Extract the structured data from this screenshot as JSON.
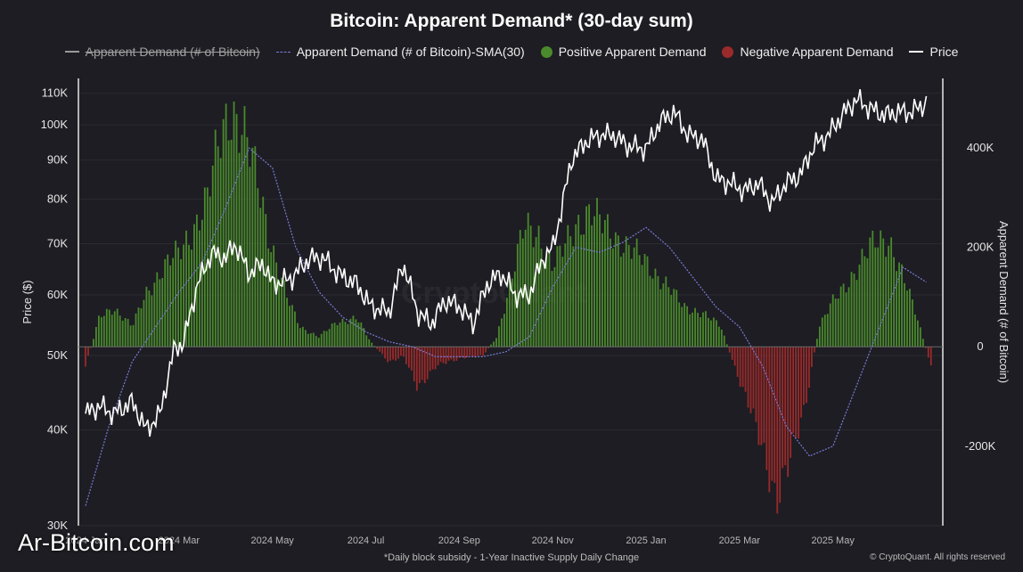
{
  "title": "Bitcoin: Apparent Demand* (30-day sum)",
  "legend": [
    {
      "label": "Apparent Demand (# of Bitcoin)",
      "style": "line",
      "color": "#9a9a9a",
      "hidden": true
    },
    {
      "label": "Apparent Demand (# of Bitcoin)-SMA(30)",
      "style": "dashed",
      "color": "#7a7ad8"
    },
    {
      "label": "Positive Apparent Demand",
      "style": "dot",
      "color": "#4a8a2c"
    },
    {
      "label": "Negative Apparent Demand",
      "style": "dot",
      "color": "#9b2a2a"
    },
    {
      "label": "Price",
      "style": "line",
      "color": "#ffffff"
    }
  ],
  "footnote": "*Daily block subsidy - 1-Year Inactive Supply Daily Change",
  "copyright": "© CryptoQuant. All rights reserved",
  "watermark": "Ar-Bitcoin.com",
  "watermark_center": "CryptoQuant",
  "chart_data": {
    "type": "bar",
    "left_axis": {
      "label": "Price ($)",
      "scale": "log",
      "range": [
        30000,
        115000
      ],
      "ticks": [
        "30K",
        "40K",
        "50K",
        "60K",
        "70K",
        "80K",
        "90K",
        "100K",
        "110K"
      ],
      "tick_values": [
        30000,
        40000,
        50000,
        60000,
        70000,
        80000,
        90000,
        100000,
        110000
      ]
    },
    "right_axis": {
      "label": "Apparent Demand (# of Bitcoin)",
      "range": [
        -360000,
        540000
      ],
      "ticks": [
        "-200K",
        "0",
        "200K",
        "400K"
      ],
      "tick_values": [
        -200000,
        0,
        200000,
        400000
      ]
    },
    "x_axis": {
      "ticks": [
        "2024 Jan",
        "2024 Mar",
        "2024 May",
        "2024 Jul",
        "2024 Sep",
        "2024 Nov",
        "2025 Jan",
        "2025 Mar",
        "2025 May"
      ],
      "tick_months": [
        0,
        2,
        4,
        6,
        8,
        10,
        12,
        14,
        16
      ],
      "range_months": [
        0,
        18.2
      ]
    },
    "colors": {
      "positive": "#4a8a2c",
      "negative": "#9b2a2a",
      "sma": "#7a7ad8",
      "price": "#ffffff"
    },
    "demand_series": {
      "name": "Apparent Demand (# of Bitcoin)",
      "x_months": [
        0,
        0.3,
        0.6,
        1.0,
        1.3,
        1.6,
        2.0,
        2.3,
        2.6,
        2.9,
        3.1,
        3.4,
        3.7,
        4.0,
        4.3,
        4.6,
        5.0,
        5.4,
        5.8,
        6.1,
        6.5,
        6.8,
        7.1,
        7.5,
        7.8,
        8.1,
        8.5,
        8.8,
        9.1,
        9.4,
        9.7,
        10.0,
        10.2,
        10.5,
        10.8,
        11.0,
        11.3,
        11.6,
        12.0,
        12.4,
        12.8,
        13.2,
        13.6,
        13.9,
        14.2,
        14.5,
        14.8,
        15.1,
        15.4,
        15.7,
        16.0,
        16.3,
        16.6,
        16.9,
        17.2,
        17.5,
        17.8,
        18.1
      ],
      "values": [
        -40000,
        60000,
        80000,
        40000,
        110000,
        150000,
        190000,
        240000,
        290000,
        430000,
        490000,
        420000,
        330000,
        200000,
        100000,
        40000,
        20000,
        50000,
        60000,
        10000,
        -30000,
        -20000,
        -80000,
        -40000,
        -30000,
        -20000,
        -20000,
        20000,
        130000,
        240000,
        230000,
        160000,
        190000,
        250000,
        270000,
        250000,
        230000,
        200000,
        170000,
        130000,
        80000,
        70000,
        40000,
        -40000,
        -120000,
        -210000,
        -300000,
        -230000,
        -120000,
        40000,
        90000,
        130000,
        170000,
        210000,
        220000,
        140000,
        60000,
        -40000
      ]
    },
    "sma_series": {
      "name": "Apparent Demand (# of Bitcoin)-SMA(30)",
      "x_months": [
        0,
        0.5,
        1.0,
        1.5,
        2.0,
        2.5,
        3.0,
        3.5,
        4.0,
        4.5,
        5.0,
        5.5,
        6.0,
        6.5,
        7.0,
        7.5,
        8.0,
        8.5,
        9.0,
        9.5,
        10.0,
        10.5,
        11.0,
        11.5,
        12.0,
        12.5,
        13.0,
        13.5,
        14.0,
        14.5,
        15.0,
        15.5,
        16.0,
        16.5,
        17.0,
        17.5,
        18.0
      ],
      "values": [
        -320000,
        -160000,
        -30000,
        40000,
        110000,
        170000,
        280000,
        400000,
        360000,
        200000,
        110000,
        60000,
        30000,
        10000,
        0,
        -20000,
        -20000,
        -20000,
        -10000,
        20000,
        120000,
        200000,
        190000,
        210000,
        240000,
        200000,
        140000,
        80000,
        40000,
        -40000,
        -160000,
        -220000,
        -200000,
        -80000,
        40000,
        160000,
        130000
      ]
    },
    "price_series": {
      "name": "Price",
      "x_months": [
        0,
        0.3,
        0.6,
        1.0,
        1.3,
        1.6,
        1.9,
        2.1,
        2.4,
        2.7,
        3.0,
        3.2,
        3.5,
        3.8,
        4.0,
        4.4,
        4.8,
        5.1,
        5.4,
        5.8,
        6.1,
        6.5,
        6.8,
        7.1,
        7.4,
        7.7,
        8.0,
        8.3,
        8.6,
        8.9,
        9.2,
        9.5,
        9.8,
        10.0,
        10.2,
        10.4,
        10.7,
        11.0,
        11.3,
        11.6,
        12.0,
        12.3,
        12.6,
        12.9,
        13.2,
        13.5,
        13.8,
        14.1,
        14.4,
        14.7,
        15.0,
        15.3,
        15.6,
        15.9,
        16.2,
        16.5,
        16.8,
        17.1,
        17.4,
        17.7,
        18.0
      ],
      "values": [
        42000,
        43000,
        42000,
        43500,
        40000,
        42000,
        51000,
        52000,
        62000,
        68000,
        67000,
        70000,
        64000,
        66000,
        62000,
        63000,
        67000,
        67000,
        64000,
        62000,
        58000,
        57000,
        66000,
        57000,
        55000,
        59000,
        58000,
        55000,
        62000,
        64000,
        60000,
        60000,
        67000,
        69000,
        78000,
        90000,
        95000,
        97000,
        97000,
        94000,
        93000,
        101000,
        104000,
        97000,
        96000,
        85000,
        84000,
        82000,
        84000,
        79000,
        84000,
        86000,
        94000,
        97000,
        103000,
        108000,
        105000,
        103000,
        104000,
        104000,
        107000
      ]
    }
  }
}
